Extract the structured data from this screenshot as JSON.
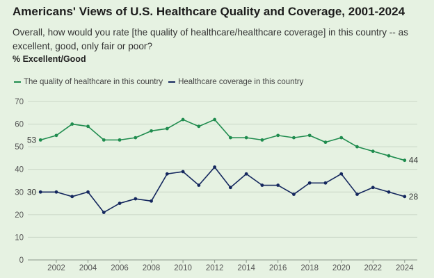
{
  "header": {
    "title": "Americans' Views of U.S. Healthcare Quality and Coverage, 2001-2024",
    "subtitle": "Overall, how would you rate [the quality of healthcare/healthcare coverage] in this country -- as excellent, good, only fair or poor?",
    "ylabel": "% Excellent/Good"
  },
  "colors": {
    "quality": "#1f8c4e",
    "coverage": "#14275e",
    "grid": "#c9d6c6",
    "background": "#e6f2e2"
  },
  "chart_data": {
    "type": "line",
    "title": "Americans' Views of U.S. Healthcare Quality and Coverage, 2001-2024",
    "ylabel": "% Excellent/Good",
    "ylim": [
      0,
      70
    ],
    "yticks": [
      0,
      10,
      20,
      30,
      40,
      50,
      60,
      70
    ],
    "xlim": [
      2000.2,
      2024.8
    ],
    "xticks": [
      2002,
      2004,
      2006,
      2008,
      2010,
      2012,
      2014,
      2016,
      2018,
      2020,
      2022,
      2024
    ],
    "grid": "horizontal",
    "legend_position": "top-left",
    "x": [
      2001,
      2002,
      2003,
      2004,
      2005,
      2006,
      2007,
      2008,
      2009,
      2010,
      2011,
      2012,
      2013,
      2014,
      2015,
      2016,
      2017,
      2018,
      2019,
      2020,
      2021,
      2022,
      2023,
      2024
    ],
    "series": [
      {
        "name": "The quality of healthcare in this country",
        "color": "#1f8c4e",
        "values": [
          53,
          55,
          60,
          59,
          53,
          53,
          54,
          57,
          58,
          62,
          59,
          62,
          54,
          54,
          53,
          55,
          54,
          55,
          52,
          54,
          50,
          48,
          46,
          44
        ],
        "start_label": "53",
        "end_label": "44"
      },
      {
        "name": "Healthcare coverage in this country",
        "color": "#14275e",
        "values": [
          30,
          30,
          28,
          30,
          21,
          25,
          27,
          26,
          38,
          39,
          33,
          41,
          32,
          38,
          33,
          33,
          29,
          34,
          34,
          38,
          29,
          32,
          30,
          28
        ],
        "start_label": "30",
        "end_label": "28"
      }
    ]
  }
}
